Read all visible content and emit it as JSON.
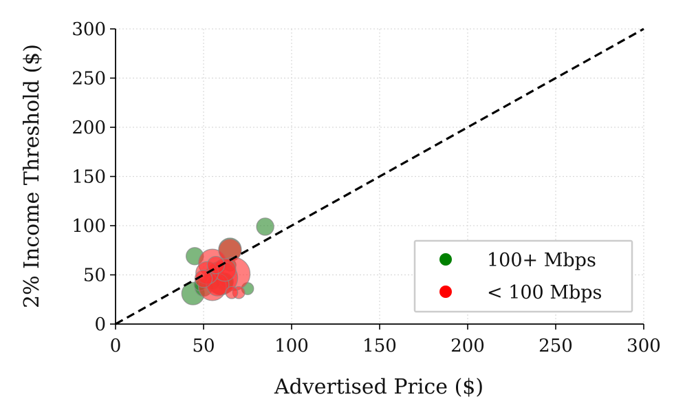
{
  "chart_data": {
    "type": "scatter",
    "title": "",
    "xlabel": "Advertised Price ($)",
    "ylabel": "2% Income Threshold ($)",
    "xlim": [
      0,
      300
    ],
    "ylim": [
      0,
      300
    ],
    "xticks": [
      "0",
      "50",
      "100",
      "150",
      "200",
      "250",
      "300"
    ],
    "yticks": [
      "0",
      "50",
      "100",
      "150",
      "200",
      "250",
      "300"
    ],
    "grid": true,
    "reference_line": {
      "style": "dashed",
      "color": "#000000",
      "from": [
        0,
        0
      ],
      "to": [
        300,
        300
      ]
    },
    "legend": {
      "placement": "bottom-right"
    },
    "series": [
      {
        "name": "100+ Mbps",
        "color": "#2e8b2e",
        "points": [
          {
            "x": 85,
            "y": 99,
            "size": 2
          },
          {
            "x": 45,
            "y": 69,
            "size": 2
          },
          {
            "x": 65,
            "y": 76,
            "size": 3
          },
          {
            "x": 44,
            "y": 31,
            "size": 3
          },
          {
            "x": 50,
            "y": 37,
            "size": 2
          },
          {
            "x": 60,
            "y": 41,
            "size": 3
          },
          {
            "x": 75,
            "y": 36,
            "size": 1
          },
          {
            "x": 62,
            "y": 43,
            "size": 2
          },
          {
            "x": 55,
            "y": 44,
            "size": 2
          },
          {
            "x": 48,
            "y": 40,
            "size": 1
          },
          {
            "x": 65,
            "y": 60,
            "size": 1
          }
        ]
      },
      {
        "name": "< 100 Mbps",
        "color": "#ff3030",
        "points": [
          {
            "x": 55,
            "y": 62,
            "size": 4
          },
          {
            "x": 65,
            "y": 75,
            "size": 3
          },
          {
            "x": 67,
            "y": 51,
            "size": 5
          },
          {
            "x": 60,
            "y": 47,
            "size": 5
          },
          {
            "x": 55,
            "y": 38,
            "size": 4
          },
          {
            "x": 58,
            "y": 40,
            "size": 3
          },
          {
            "x": 62,
            "y": 55,
            "size": 3
          },
          {
            "x": 52,
            "y": 52,
            "size": 3
          },
          {
            "x": 70,
            "y": 32,
            "size": 1
          },
          {
            "x": 66,
            "y": 32,
            "size": 1
          },
          {
            "x": 50,
            "y": 46,
            "size": 2
          },
          {
            "x": 57,
            "y": 60,
            "size": 2
          }
        ]
      }
    ]
  }
}
